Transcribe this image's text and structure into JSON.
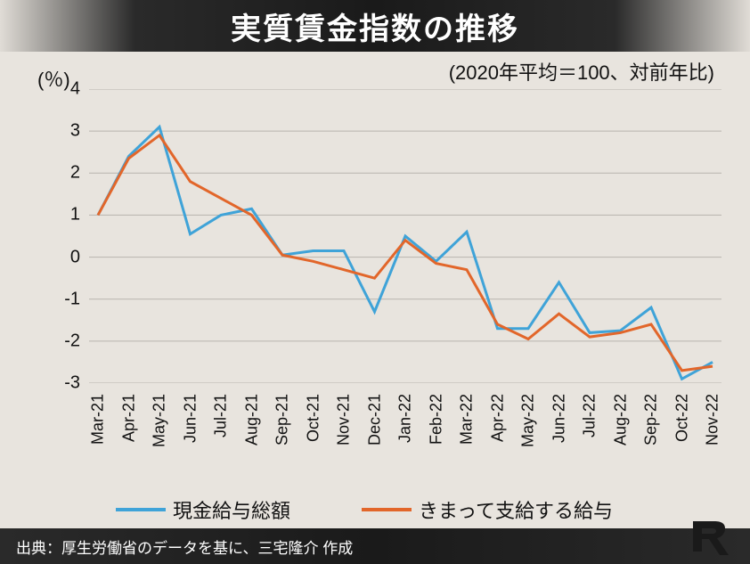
{
  "title": "実質賃金指数の推移",
  "subtitle": "(2020年平均＝100、対前年比)",
  "ylabel": "(％)",
  "source": "出典：厚生労働省のデータを基に、三宅隆介 作成",
  "chart": {
    "type": "line",
    "background_color": "#e8e4de",
    "grid_color": "#b8b4ae",
    "ylim": [
      -3,
      4
    ],
    "ytick_step": 1,
    "yticks": [
      4,
      3,
      2,
      1,
      0,
      -1,
      -2,
      -3
    ],
    "tick_fontsize": 20,
    "categories": [
      "Mar-21",
      "Apr-21",
      "May-21",
      "Jun-21",
      "Jul-21",
      "Aug-21",
      "Sep-21",
      "Oct-21",
      "Nov-21",
      "Dec-21",
      "Jan-22",
      "Feb-22",
      "Mar-22",
      "Apr-22",
      "May-22",
      "Jun-22",
      "Jul-22",
      "Aug-22",
      "Sep-22",
      "Oct-22",
      "Nov-22"
    ],
    "series": [
      {
        "name": "現金給与総額",
        "color": "#3fa3d8",
        "line_width": 3,
        "values": [
          1.0,
          2.4,
          3.1,
          0.55,
          1.0,
          1.15,
          0.05,
          0.15,
          0.15,
          -1.3,
          0.5,
          -0.1,
          0.6,
          -1.7,
          -1.7,
          -0.6,
          -1.8,
          -1.75,
          -1.2,
          -2.9,
          -2.5
        ]
      },
      {
        "name": "きまって支給する給与",
        "color": "#e2662a",
        "line_width": 3,
        "values": [
          1.0,
          2.35,
          2.9,
          1.8,
          1.4,
          1.0,
          0.05,
          -0.1,
          -0.3,
          -0.5,
          0.4,
          -0.15,
          -0.3,
          -1.6,
          -1.95,
          -1.35,
          -1.9,
          -1.8,
          -1.6,
          -2.7,
          -2.6
        ]
      }
    ]
  },
  "legend": {
    "items": [
      {
        "label": "現金給与総額",
        "color": "#3fa3d8"
      },
      {
        "label": "きまって支給する給与",
        "color": "#e2662a"
      }
    ]
  },
  "colors": {
    "background": "#e8e4de",
    "title_bg": "#1a1a1a",
    "text": "#111111"
  },
  "logo": {
    "color": "#e8e4de",
    "bg": "#1a1a1a"
  }
}
